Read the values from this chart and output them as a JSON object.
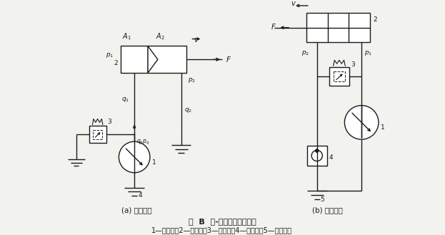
{
  "title_line1": "图  B  泵-缸式容积调速回路",
  "title_line2": "1—变量泵；2—液压缸；3—安全阀；4—单向鄀；5—补油油筱",
  "label_a": "(a) 开式回路",
  "label_b": "(b) 闭式回路",
  "bg_color": "#f2f2ee",
  "line_color": "#1a1a1a",
  "text_color": "#1a1a1a"
}
